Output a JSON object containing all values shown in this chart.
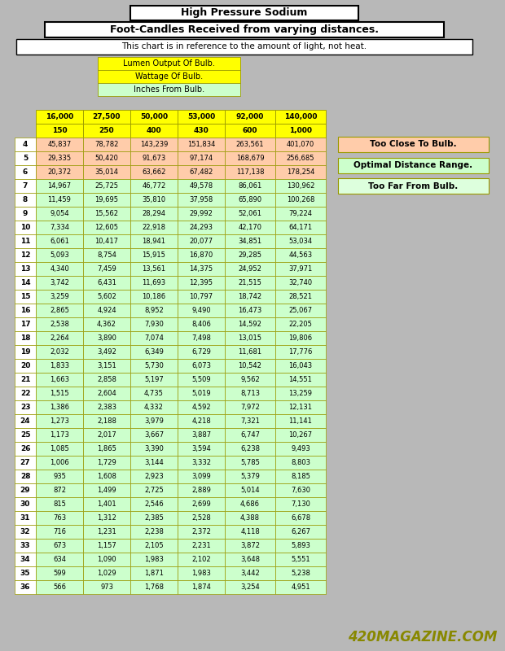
{
  "title1": "High Pressure Sodium",
  "title2": "Foot-Candles Received from varying distances.",
  "subtitle": "This chart is in reference to the amount of light, not heat.",
  "legend_labels": [
    "Lumen Output Of Bulb.",
    "Wattage Of Bulb.",
    "Inches From Bulb."
  ],
  "legend_colors": [
    "#ffff00",
    "#ffff00",
    "#ccffcc"
  ],
  "col_headers_row1": [
    "16,000",
    "27,500",
    "50,000",
    "53,000",
    "92,000",
    "140,000"
  ],
  "col_headers_row2": [
    "150",
    "250",
    "400",
    "430",
    "600",
    "1,000"
  ],
  "row_labels": [
    4,
    5,
    6,
    7,
    8,
    9,
    10,
    11,
    12,
    13,
    14,
    15,
    16,
    17,
    18,
    19,
    20,
    21,
    22,
    23,
    24,
    25,
    26,
    27,
    28,
    29,
    30,
    31,
    32,
    33,
    34,
    35,
    36
  ],
  "table_data": [
    [
      45837,
      78782,
      143239,
      151834,
      263561,
      401070
    ],
    [
      29335,
      50420,
      91673,
      97174,
      168679,
      256685
    ],
    [
      20372,
      35014,
      63662,
      67482,
      117138,
      178254
    ],
    [
      14967,
      25725,
      46772,
      49578,
      86061,
      130962
    ],
    [
      11459,
      19695,
      35810,
      37958,
      65890,
      100268
    ],
    [
      9054,
      15562,
      28294,
      29992,
      52061,
      79224
    ],
    [
      7334,
      12605,
      22918,
      24293,
      42170,
      64171
    ],
    [
      6061,
      10417,
      18941,
      20077,
      34851,
      53034
    ],
    [
      5093,
      8754,
      15915,
      16870,
      29285,
      44563
    ],
    [
      4340,
      7459,
      13561,
      14375,
      24952,
      37971
    ],
    [
      3742,
      6431,
      11693,
      12395,
      21515,
      32740
    ],
    [
      3259,
      5602,
      10186,
      10797,
      18742,
      28521
    ],
    [
      2865,
      4924,
      8952,
      9490,
      16473,
      25067
    ],
    [
      2538,
      4362,
      7930,
      8406,
      14592,
      22205
    ],
    [
      2264,
      3890,
      7074,
      7498,
      13015,
      19806
    ],
    [
      2032,
      3492,
      6349,
      6729,
      11681,
      17776
    ],
    [
      1833,
      3151,
      5730,
      6073,
      10542,
      16043
    ],
    [
      1663,
      2858,
      5197,
      5509,
      9562,
      14551
    ],
    [
      1515,
      2604,
      4735,
      5019,
      8713,
      13259
    ],
    [
      1386,
      2383,
      4332,
      4592,
      7972,
      12131
    ],
    [
      1273,
      2188,
      3979,
      4218,
      7321,
      11141
    ],
    [
      1173,
      2017,
      3667,
      3887,
      6747,
      10267
    ],
    [
      1085,
      1865,
      3390,
      3594,
      6238,
      9493
    ],
    [
      1006,
      1729,
      3144,
      3332,
      5785,
      8803
    ],
    [
      935,
      1608,
      2923,
      3099,
      5379,
      8185
    ],
    [
      872,
      1499,
      2725,
      2889,
      5014,
      7630
    ],
    [
      815,
      1401,
      2546,
      2699,
      4686,
      7130
    ],
    [
      763,
      1312,
      2385,
      2528,
      4388,
      6678
    ],
    [
      716,
      1231,
      2238,
      2372,
      4118,
      6267
    ],
    [
      673,
      1157,
      2105,
      2231,
      3872,
      5893
    ],
    [
      634,
      1090,
      1983,
      2102,
      3648,
      5551
    ],
    [
      599,
      1029,
      1871,
      1983,
      3442,
      5238
    ],
    [
      566,
      973,
      1768,
      1874,
      3254,
      4951
    ]
  ],
  "bg_color": "#b8b8b8",
  "side_labels": [
    "Too Close To Bulb.",
    "Optimal Distance Range.",
    "Too Far From Bulb."
  ],
  "side_colors": [
    "#ffccaa",
    "#ccffcc",
    "#ddffdd"
  ],
  "watermark": "420MAGAZINE.COM"
}
